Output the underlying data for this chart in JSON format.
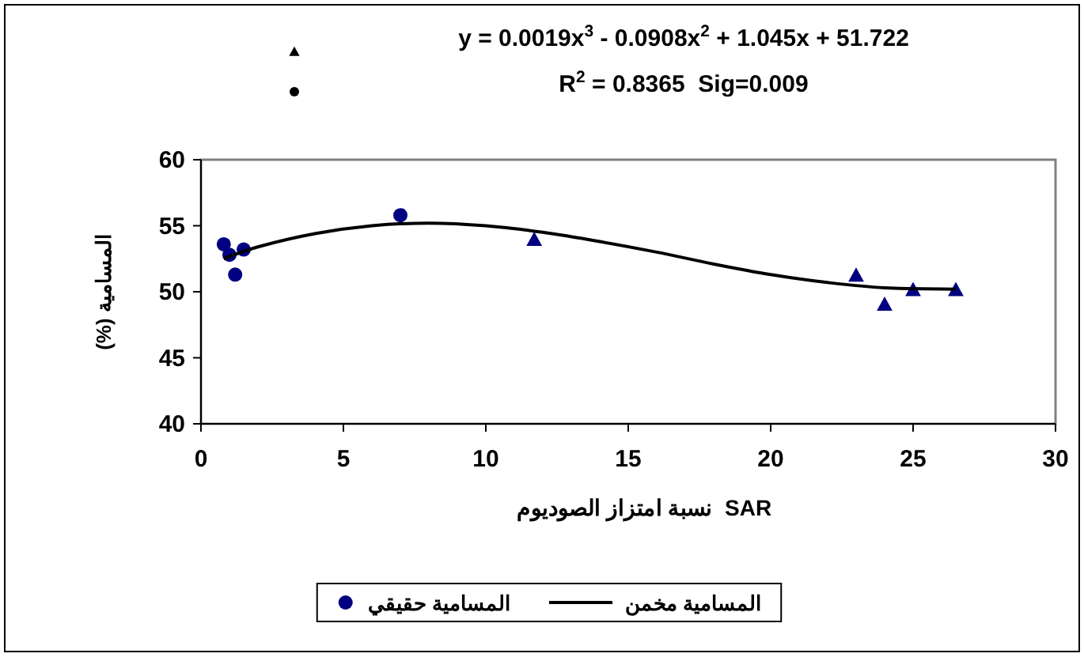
{
  "chart_data": {
    "type": "scatter",
    "xlabel": "نسبة امتزاز الصوديوم  SAR",
    "ylabel": "(%) المسامية",
    "annotations": [
      "y = 0.0019x$^{3}$ - 0.0908x$^{2}$ + 1.045x + 51.722",
      "R$^{2}$ = 0.8365  Sig=0.009"
    ],
    "series": [
      {
        "marker": "triangle",
        "color": "#000080",
        "x": [
          11.7,
          23.0,
          24.0,
          25.0,
          26.5
        ],
        "values": [
          53.9,
          51.2,
          49.0,
          50.1,
          50.1
        ]
      },
      {
        "name": "المسامية حقيقي",
        "marker": "circle",
        "color": "#000080",
        "x": [
          0.8,
          1.0,
          1.2,
          1.5,
          7.0
        ],
        "values": [
          53.6,
          52.8,
          51.3,
          53.2,
          55.8
        ]
      },
      {
        "type": "line",
        "name": "المسامية مخمن",
        "marker": "none",
        "line_style": "solid",
        "color": "#000000",
        "x": [
          0.8,
          2,
          4,
          6,
          8,
          10,
          12,
          14,
          16,
          18,
          20,
          22,
          24,
          26.5
        ],
        "values": [
          52.5,
          53.4,
          54.4,
          55.0,
          55.2,
          55.0,
          54.5,
          53.8,
          53.0,
          52.1,
          51.3,
          50.7,
          50.3,
          50.2
        ]
      }
    ],
    "xlim": [
      0,
      30
    ],
    "xticks": [
      0,
      5,
      10,
      15,
      20,
      25,
      30
    ],
    "ylim": [
      40,
      60
    ],
    "yticks": [
      40,
      45,
      50,
      55,
      60
    ],
    "grid": false,
    "legend": "bottom"
  }
}
